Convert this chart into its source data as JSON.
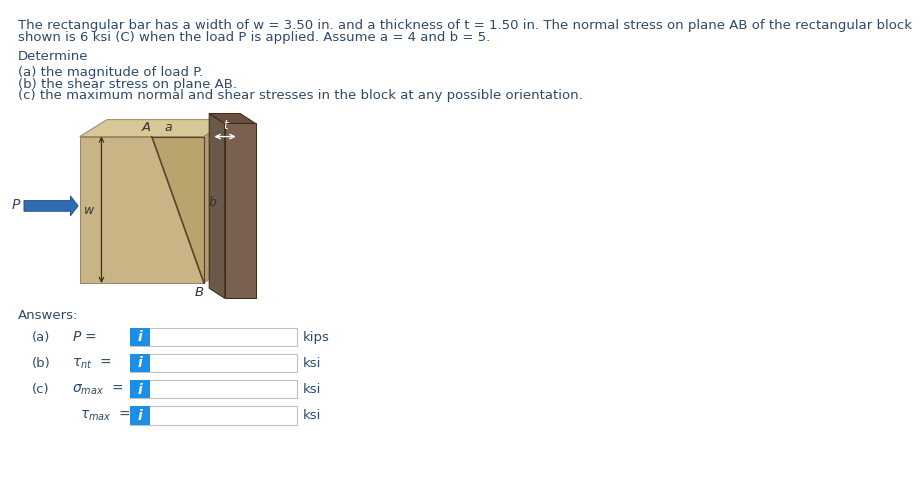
{
  "title_line1": "The rectangular bar has a width of w = 3.50 in. and a thickness of t = 1.50 in. The normal stress on plane AB of the rectangular block",
  "title_line2": "shown is 6 ksi (C) when the load P is applied. Assume a = 4 and b = 5.",
  "determine_text": "Determine",
  "items": [
    "(a) the magnitude of load P.",
    "(b) the shear stress on plane AB.",
    "(c) the maximum normal and shear stresses in the block at any possible orientation."
  ],
  "answers_text": "Answers:",
  "answer_rows": [
    {
      "label_left": "(a)",
      "label_mid": "P =",
      "unit": "kips"
    },
    {
      "label_left": "(b)",
      "label_mid": "nt",
      "unit": "ksi"
    },
    {
      "label_left": "(c)",
      "label_mid": "max_s",
      "unit": "ksi"
    },
    {
      "label_left": "",
      "label_mid": "max_t",
      "unit": "ksi"
    }
  ],
  "text_color": "#2E4A6B",
  "blue_btn_color": "#1B8FE8",
  "btn_border_color": "#C0C0C0",
  "bg_color": "#FFFFFF",
  "body_fontsize": 9.5,
  "diagram": {
    "bar_face_color": "#C8B484",
    "bar_top_color": "#D8C898",
    "bar_right_color": "#B0A070",
    "cut_color": "#B8A46C",
    "end_face_color": "#7A6050",
    "end_top_color": "#6A5040",
    "end_side_color": "#6A5848",
    "arrow_color": "#2E6DB4"
  }
}
